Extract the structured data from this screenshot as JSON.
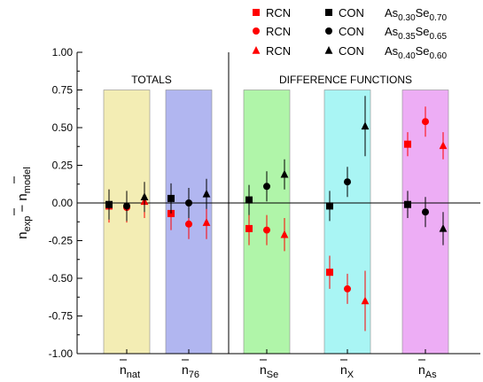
{
  "chart_data": {
    "type": "scatter",
    "title": "",
    "ylabel_parts": {
      "exp_sub": "exp",
      "model_sub": "model"
    },
    "ylim": [
      -1.0,
      1.0
    ],
    "yticks": [
      "1.00",
      "0.75",
      "0.50",
      "0.25",
      "0.00",
      "-0.25",
      "-0.50",
      "-0.75",
      "-1.00"
    ],
    "ytick_values": [
      1.0,
      0.75,
      0.5,
      0.25,
      0.0,
      -0.25,
      -0.5,
      -0.75,
      -1.0
    ],
    "groups": [
      {
        "base": "n",
        "sub": "nat",
        "color": "#F3EDB4"
      },
      {
        "base": "n",
        "sub": "76",
        "color": "#B1B6F0"
      },
      {
        "base": "n",
        "sub": "Se",
        "color": "#B0F5A9"
      },
      {
        "base": "n",
        "sub": "X",
        "color": "#A9F5F4"
      },
      {
        "base": "n",
        "sub": "As",
        "color": "#EDADF5"
      }
    ],
    "section_labels": {
      "totals": "TOTALS",
      "difference": "DIFFERENCE   FUNCTIONS"
    },
    "legend": {
      "placement": "top-right",
      "rows": [
        {
          "marker": "square",
          "rcn": "RCN",
          "con": "CON",
          "comp_as": "As",
          "x_as": "0.30",
          "comp_se": "Se",
          "x_se": "0.70"
        },
        {
          "marker": "circle",
          "rcn": "RCN",
          "con": "CON",
          "comp_as": "As",
          "x_as": "0.35",
          "comp_se": "Se",
          "x_se": "0.65"
        },
        {
          "marker": "triangle",
          "rcn": "RCN",
          "con": "CON",
          "comp_as": "As",
          "x_as": "0.40",
          "comp_se": "Se",
          "x_se": "0.60"
        }
      ]
    },
    "colors": {
      "rcn": "#FF0000",
      "con": "#000000"
    },
    "series": [
      {
        "model": "RCN",
        "composition": "As0.30Se0.70",
        "marker": "square",
        "values": [
          -0.02,
          -0.07,
          -0.17,
          -0.46,
          0.39
        ],
        "errors": [
          0.11,
          0.11,
          0.11,
          0.11,
          0.08
        ]
      },
      {
        "model": "CON",
        "composition": "As0.30Se0.70",
        "marker": "square",
        "values": [
          -0.01,
          0.03,
          0.02,
          -0.02,
          -0.01
        ],
        "errors": [
          0.1,
          0.1,
          0.1,
          0.1,
          0.09
        ]
      },
      {
        "model": "RCN",
        "composition": "As0.35Se0.65",
        "marker": "circle",
        "values": [
          -0.03,
          -0.14,
          -0.18,
          -0.57,
          0.54
        ],
        "errors": [
          0.1,
          0.1,
          0.1,
          0.1,
          0.1
        ]
      },
      {
        "model": "CON",
        "composition": "As0.35Se0.65",
        "marker": "circle",
        "values": [
          -0.02,
          0.0,
          0.11,
          0.14,
          -0.06
        ],
        "errors": [
          0.1,
          0.1,
          0.1,
          0.1,
          0.1
        ]
      },
      {
        "model": "RCN",
        "composition": "As0.40Se0.60",
        "marker": "triangle",
        "values": [
          0.01,
          -0.13,
          -0.21,
          -0.65,
          0.38
        ],
        "errors": [
          0.11,
          0.11,
          0.11,
          0.2,
          0.09
        ]
      },
      {
        "model": "CON",
        "composition": "As0.40Se0.60",
        "marker": "triangle",
        "values": [
          0.04,
          0.06,
          0.19,
          0.51,
          -0.17
        ],
        "errors": [
          0.1,
          0.1,
          0.1,
          0.2,
          0.11
        ]
      }
    ]
  }
}
